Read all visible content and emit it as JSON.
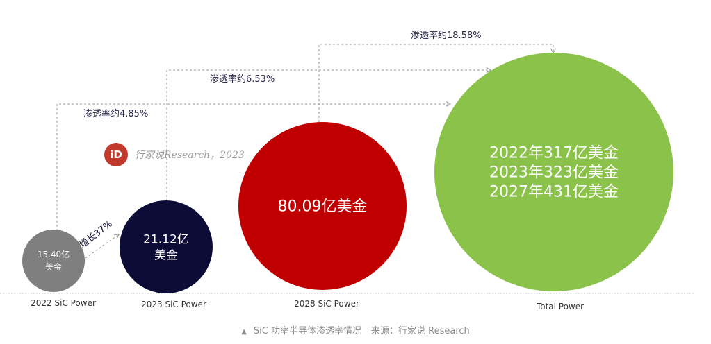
{
  "chart_data": {
    "type": "bubble",
    "categories": [
      "2022 SiC Power",
      "2023  SiC Power",
      "2028 SiC Power",
      "Total Power"
    ],
    "values": [
      15.4,
      21.12,
      80.09,
      431
    ],
    "bubble_labels": [
      [
        "15.40亿",
        "美金"
      ],
      [
        "21.12亿",
        "美金"
      ],
      [
        "80.09亿美金"
      ],
      [
        "2022年317亿美金",
        "2023年323亿美金",
        "2027年431亿美金"
      ]
    ],
    "colors": [
      "#7f7f7f",
      "#0c0c36",
      "#c00000",
      "#8bc34a"
    ],
    "annotations": [
      {
        "text": "渗透率约4.85%",
        "from": "2022 SiC Power",
        "to": "Total Power"
      },
      {
        "text": "渗透率约6.53%",
        "from": "2023  SiC Power",
        "to": "Total Power"
      },
      {
        "text": "渗透率约18.58%",
        "from": "2028 SiC Power",
        "to": "Total Power"
      },
      {
        "text": "增长37%",
        "from": "2022 SiC Power",
        "to": "2023  SiC Power"
      }
    ]
  },
  "watermark": {
    "logo": "iD",
    "text": "行家说Research，2023"
  },
  "caption": {
    "marker": "▲",
    "title": "SiC 功率半导体渗透率情况",
    "source": "来源：行家说 Research"
  }
}
